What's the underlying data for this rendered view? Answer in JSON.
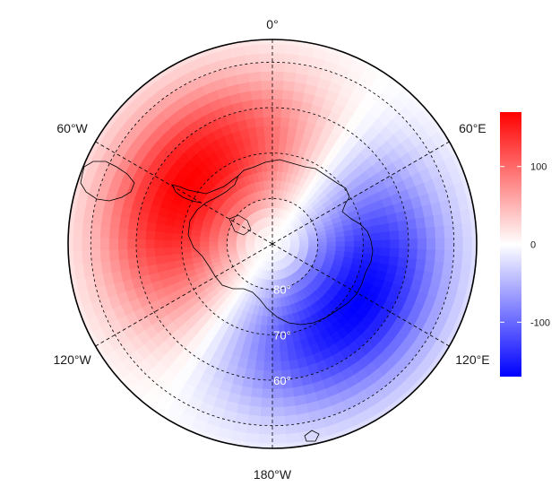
{
  "chart_data": {
    "type": "heatmap",
    "title": "",
    "projection": "south-polar-stereographic",
    "colormap": {
      "low": "#0000ff",
      "mid": "#ffffff",
      "high": "#ff0000"
    },
    "colorbar": {
      "ticks": [
        100,
        0,
        -100
      ],
      "range": [
        -170,
        170
      ]
    },
    "lon_labels": [
      "0°",
      "60°E",
      "120°E",
      "180°W",
      "120°W",
      "60°W"
    ],
    "lat_labels": [
      "80°",
      "70°",
      "60°"
    ],
    "lat_circles": [
      80,
      70,
      60,
      50
    ],
    "lat_limit": 45,
    "meridians": [
      0,
      60,
      120,
      180,
      240,
      300
    ],
    "pattern": {
      "wave_number": 1,
      "positive_center_lon": -55,
      "negative_center_lon": 125,
      "peak_lat": -67,
      "amplitude": 170
    }
  }
}
